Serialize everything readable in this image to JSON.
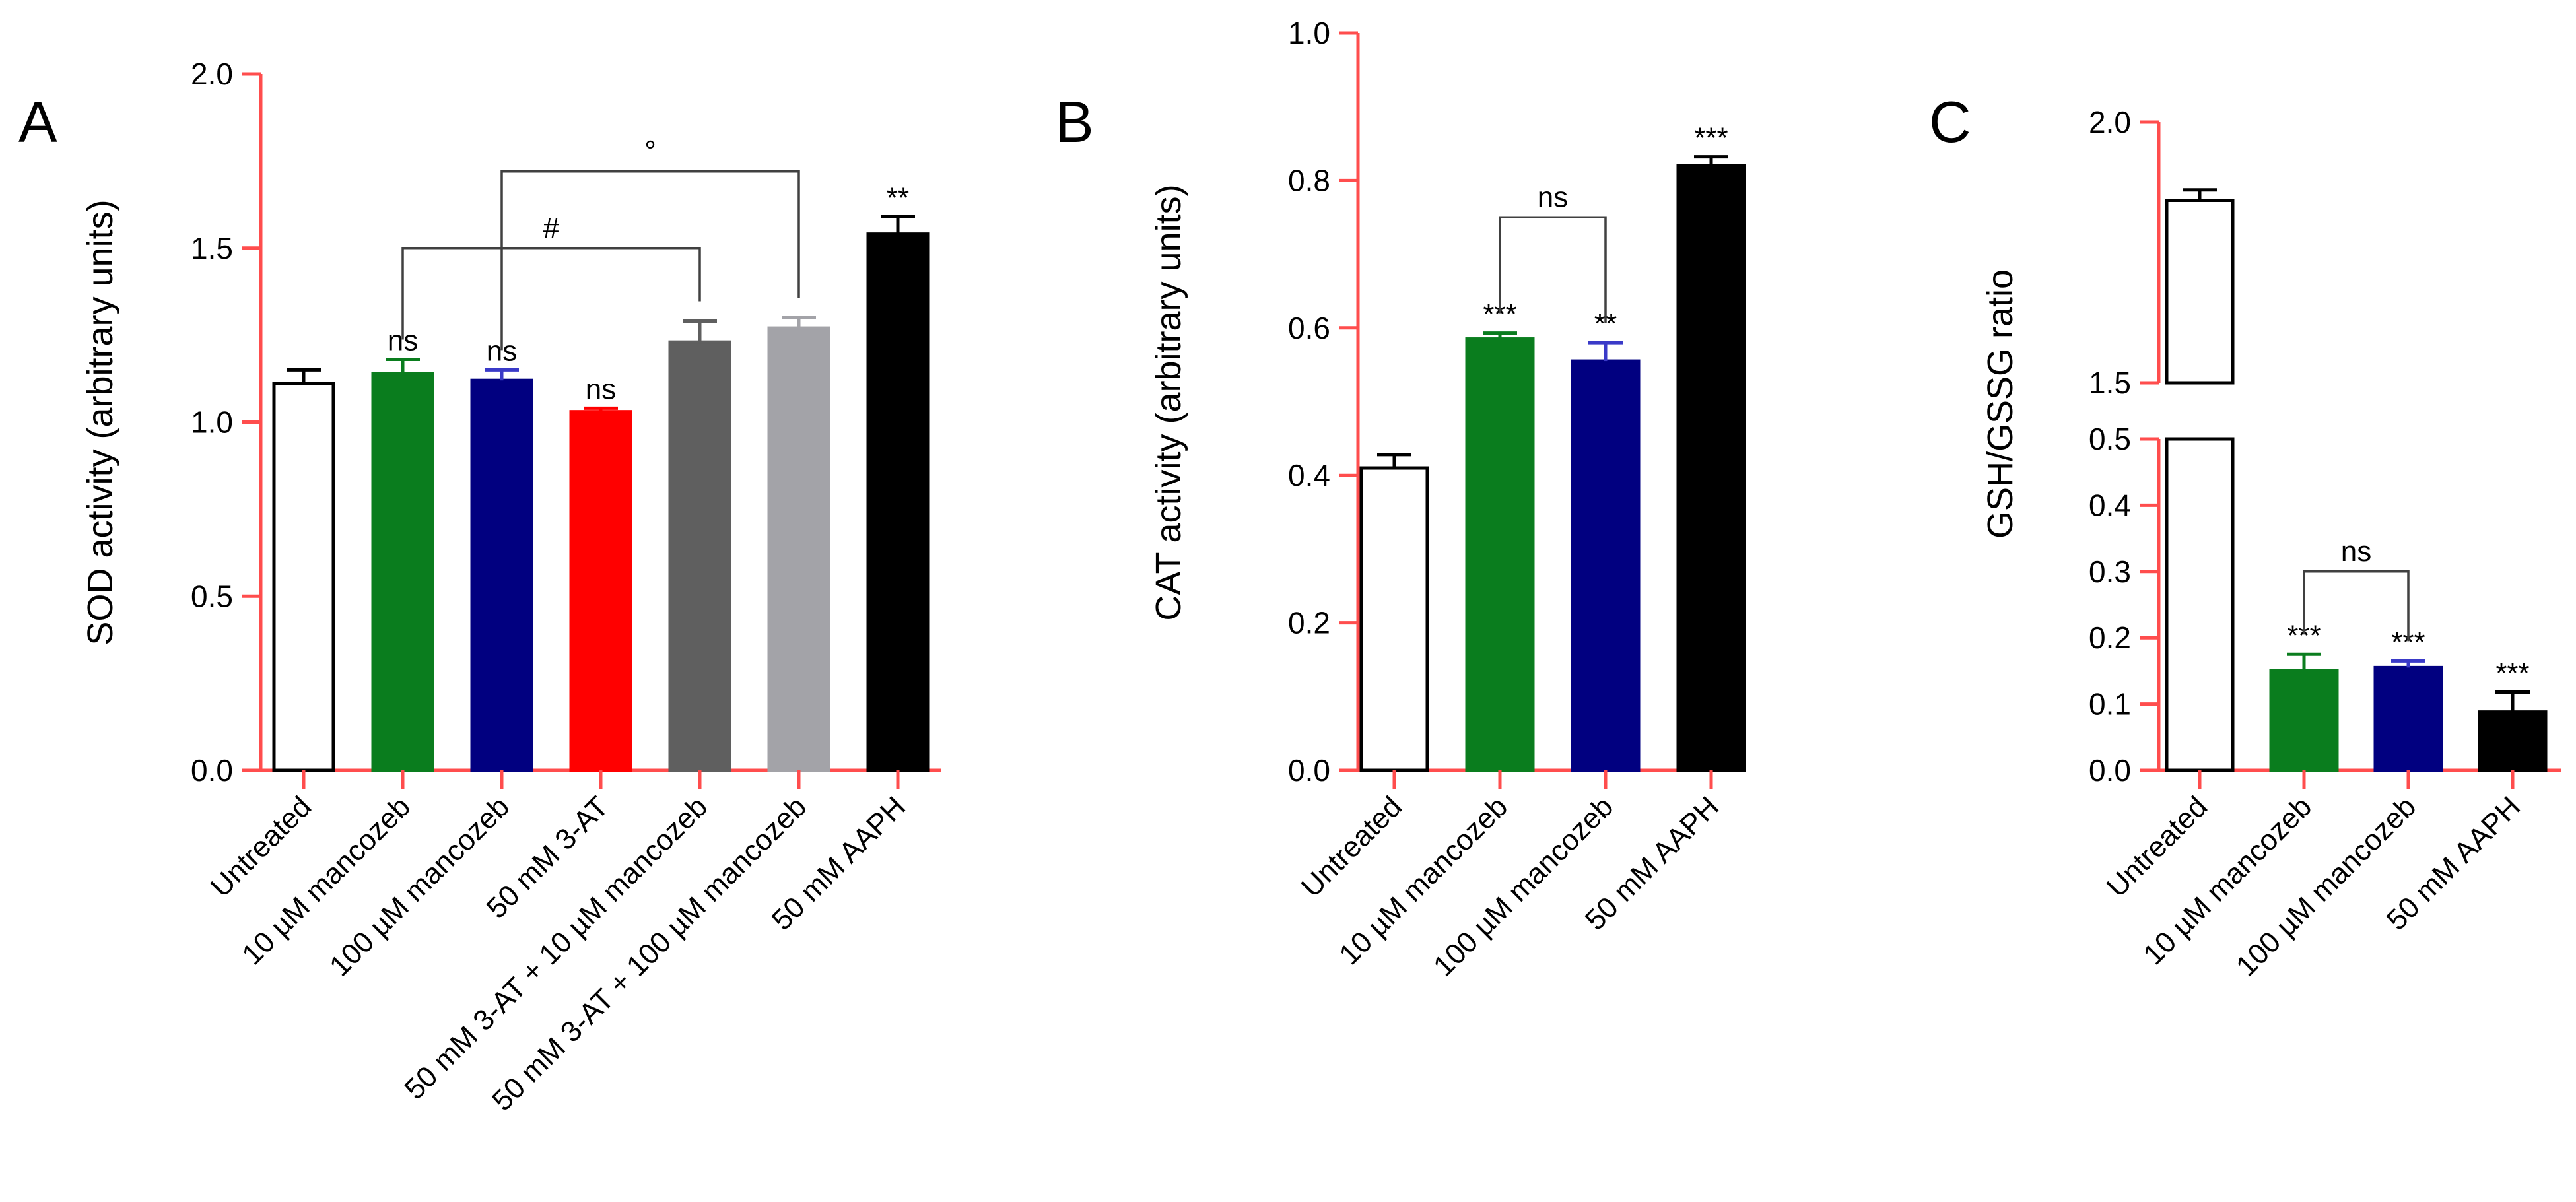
{
  "colors": {
    "axis": "#ff4d4d",
    "untreated_fill": "#ffffff",
    "green": "#0a7d1e",
    "navy": "#010080",
    "red": "#ff0000",
    "dark_gray": "#5f5f5f",
    "light_gray": "#a3a3a8",
    "black": "#000000"
  },
  "chart_data": [
    {
      "type": "bar",
      "panel_letter": "A",
      "title": "",
      "xlabel": "",
      "ylabel": "SOD activity (arbitrary units)",
      "ylim": [
        0,
        2.0
      ],
      "yticks": [
        "0.0",
        "0.5",
        "1.0",
        "1.5",
        "2.0"
      ],
      "categories": [
        "Untreated",
        "10 µM mancozeb",
        "100 µM mancozeb",
        "50 mM 3-AT",
        "50 mM 3-AT + 10 µM mancozeb",
        "50 mM 3-AT + 100 µM mancozeb",
        "50 mM AAPH"
      ],
      "values": [
        1.11,
        1.14,
        1.12,
        1.03,
        1.23,
        1.27,
        1.54
      ],
      "errors": [
        0.04,
        0.04,
        0.03,
        0.01,
        0.06,
        0.03,
        0.05
      ],
      "fills": [
        "#ffffff",
        "#0a7d1e",
        "#010080",
        "#ff0000",
        "#5f5f5f",
        "#a3a3a8",
        "#000000"
      ],
      "annotations": [
        "",
        "ns",
        "ns",
        "ns",
        "",
        "",
        "**"
      ],
      "brackets": [
        {
          "from": 1,
          "to": 4,
          "y": 1.5,
          "label": "#"
        },
        {
          "from": 2,
          "to": 5,
          "y": 1.72,
          "label": "°"
        }
      ]
    },
    {
      "type": "bar",
      "panel_letter": "B",
      "title": "",
      "xlabel": "",
      "ylabel": "CAT activity (arbitrary units)",
      "ylim": [
        0,
        1.0
      ],
      "yticks": [
        "0.0",
        "0.2",
        "0.4",
        "0.6",
        "0.8",
        "1.0"
      ],
      "categories": [
        "Untreated",
        "10 µM mancozeb",
        "100 µM mancozeb",
        "50 mM AAPH"
      ],
      "values": [
        0.41,
        0.585,
        0.555,
        0.82
      ],
      "errors": [
        0.018,
        0.008,
        0.025,
        0.012
      ],
      "fills": [
        "#ffffff",
        "#0a7d1e",
        "#010080",
        "#000000"
      ],
      "annotations": [
        "",
        "***",
        "**",
        "***"
      ],
      "brackets": [
        {
          "from": 1,
          "to": 2,
          "y": 0.75,
          "label": "ns"
        }
      ]
    },
    {
      "type": "bar",
      "panel_letter": "C",
      "title": "",
      "xlabel": "",
      "ylabel": "GSH/GSSG ratio",
      "ylim_lower": [
        0,
        0.5
      ],
      "ylim_upper": [
        1.5,
        2.0
      ],
      "yticks_lower": [
        "0.0",
        "0.1",
        "0.2",
        "0.3",
        "0.4",
        "0.5"
      ],
      "yticks_upper": [
        "1.5",
        "2.0"
      ],
      "categories": [
        "Untreated",
        "10 µM mancozeb",
        "100 µM mancozeb",
        "50 mM AAPH"
      ],
      "values": [
        1.85,
        0.15,
        0.155,
        0.088
      ],
      "errors": [
        0.02,
        0.025,
        0.01,
        0.03
      ],
      "fills": [
        "#ffffff",
        "#0a7d1e",
        "#010080",
        "#000000"
      ],
      "annotations": [
        "",
        "***",
        "***",
        "***"
      ],
      "brackets": [
        {
          "from": 1,
          "to": 2,
          "y": 0.3,
          "label": "ns"
        }
      ]
    }
  ]
}
